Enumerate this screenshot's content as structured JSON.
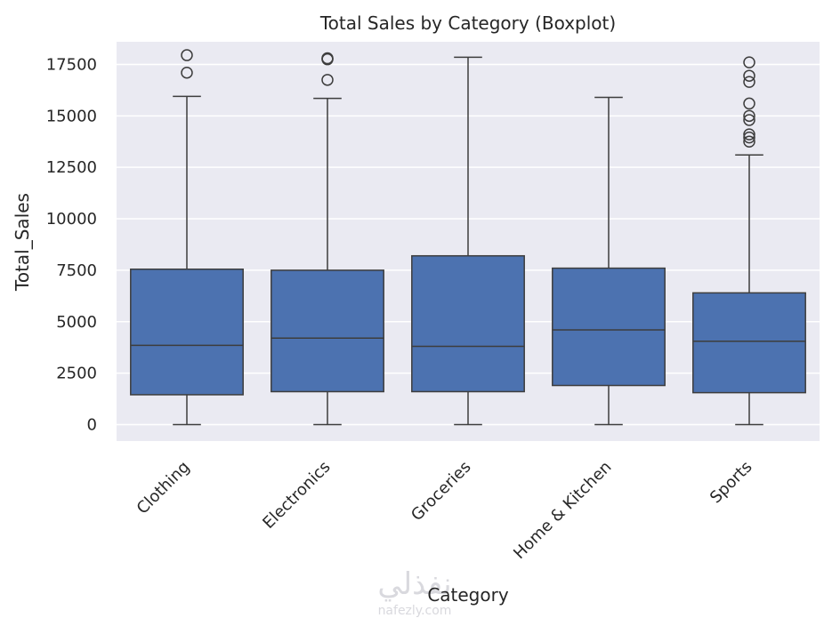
{
  "chart_data": {
    "type": "boxplot",
    "title": "Total Sales by Category (Boxplot)",
    "xlabel": "Category",
    "ylabel": "Total_Sales",
    "ylim": [
      -800,
      18600
    ],
    "yticks": [
      0,
      2500,
      5000,
      7500,
      10000,
      12500,
      15000,
      17500
    ],
    "yticklabels": [
      "0",
      "2500",
      "5000",
      "7500",
      "10000",
      "12500",
      "15000",
      "17500"
    ],
    "grid": true,
    "box_color": "#4c72b0",
    "line_color": "#3d3d3d",
    "background": "#eaeaf2",
    "categories": [
      "Clothing",
      "Electronics",
      "Groceries",
      "Home & Kitchen",
      "Sports"
    ],
    "boxes": [
      {
        "category": "Clothing",
        "whisker_low": 0,
        "q1": 1450,
        "median": 3850,
        "q3": 7550,
        "whisker_high": 15950,
        "outliers": [
          17100,
          17950
        ]
      },
      {
        "category": "Electronics",
        "whisker_low": 0,
        "q1": 1600,
        "median": 4200,
        "q3": 7500,
        "whisker_high": 15850,
        "outliers": [
          16750,
          17750,
          17800
        ]
      },
      {
        "category": "Groceries",
        "whisker_low": 0,
        "q1": 1600,
        "median": 3800,
        "q3": 8200,
        "whisker_high": 17850,
        "outliers": []
      },
      {
        "category": "Home & Kitchen",
        "whisker_low": 0,
        "q1": 1900,
        "median": 4600,
        "q3": 7600,
        "whisker_high": 15900,
        "outliers": []
      },
      {
        "category": "Sports",
        "whisker_low": 0,
        "q1": 1550,
        "median": 4050,
        "q3": 6400,
        "whisker_high": 13100,
        "outliers": [
          13750,
          13950,
          14100,
          14800,
          15000,
          15600,
          16650,
          16950,
          17600
        ]
      }
    ]
  },
  "watermark": {
    "arabic": "نفذلي",
    "latin": "nafezly.com"
  }
}
